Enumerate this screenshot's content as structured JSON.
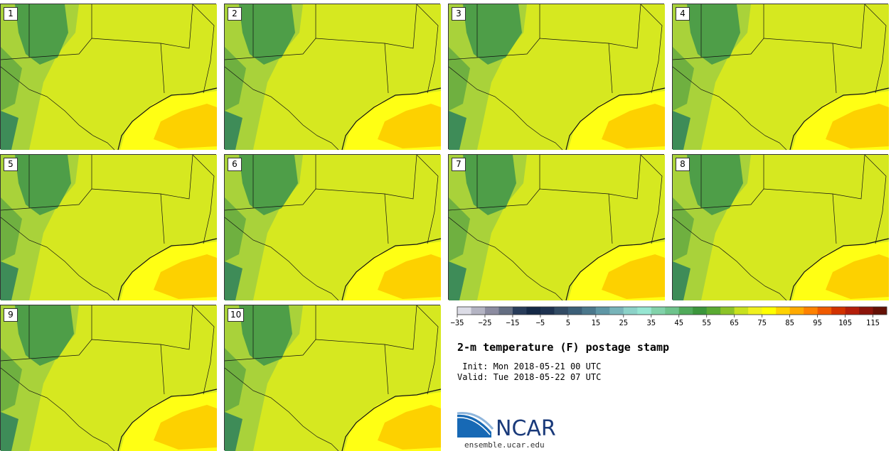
{
  "panels": [
    {
      "label": "1"
    },
    {
      "label": "2"
    },
    {
      "label": "3"
    },
    {
      "label": "4"
    },
    {
      "label": "5"
    },
    {
      "label": "6"
    },
    {
      "label": "7"
    },
    {
      "label": "8"
    },
    {
      "label": "9"
    },
    {
      "label": "10"
    }
  ],
  "legend": {
    "colors": [
      "#dcdce6",
      "#b4b4c3",
      "#8c8ca0",
      "#646e82",
      "#283c5a",
      "#142846",
      "#1e3250",
      "#324b64",
      "#3c5f78",
      "#4b788c",
      "#5f96a5",
      "#78b4b9",
      "#8cd2c8",
      "#96e6d2",
      "#82d2aa",
      "#6ec38c",
      "#50aa5a",
      "#3c963c",
      "#5aaa32",
      "#8cc328",
      "#c8e11e",
      "#f0f01e",
      "#ffff00",
      "#ffd200",
      "#ffaa00",
      "#ff8200",
      "#f05a00",
      "#d23200",
      "#b41e0a",
      "#8c140a",
      "#641005"
    ],
    "tick_labels": [
      "−35",
      "−25",
      "−15",
      "−5",
      "5",
      "15",
      "25",
      "35",
      "45",
      "55",
      "65",
      "75",
      "85",
      "95",
      "105",
      "115"
    ]
  },
  "title": "2-m temperature (F) postage stamp",
  "init_text": " Init: Mon 2018-05-21 00 UTC",
  "valid_text": "Valid: Tue 2018-05-22 07 UTC",
  "logo": {
    "name": "NCAR",
    "url": "ensemble.ucar.edu"
  }
}
